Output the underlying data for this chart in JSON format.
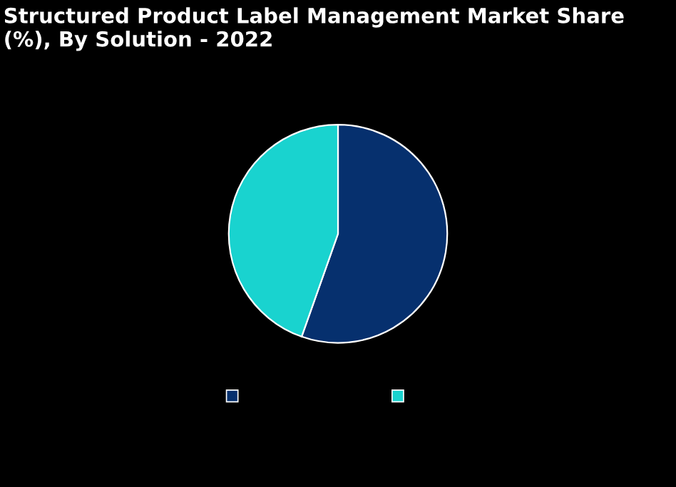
{
  "chart_data": {
    "type": "pie",
    "title": "Structured Product Label Management Market Share (%), By Solution - 2022",
    "categories": [
      null,
      null
    ],
    "values": [
      55.4,
      44.6
    ],
    "colors": [
      "#06306e",
      "#19d3cf"
    ]
  }
}
